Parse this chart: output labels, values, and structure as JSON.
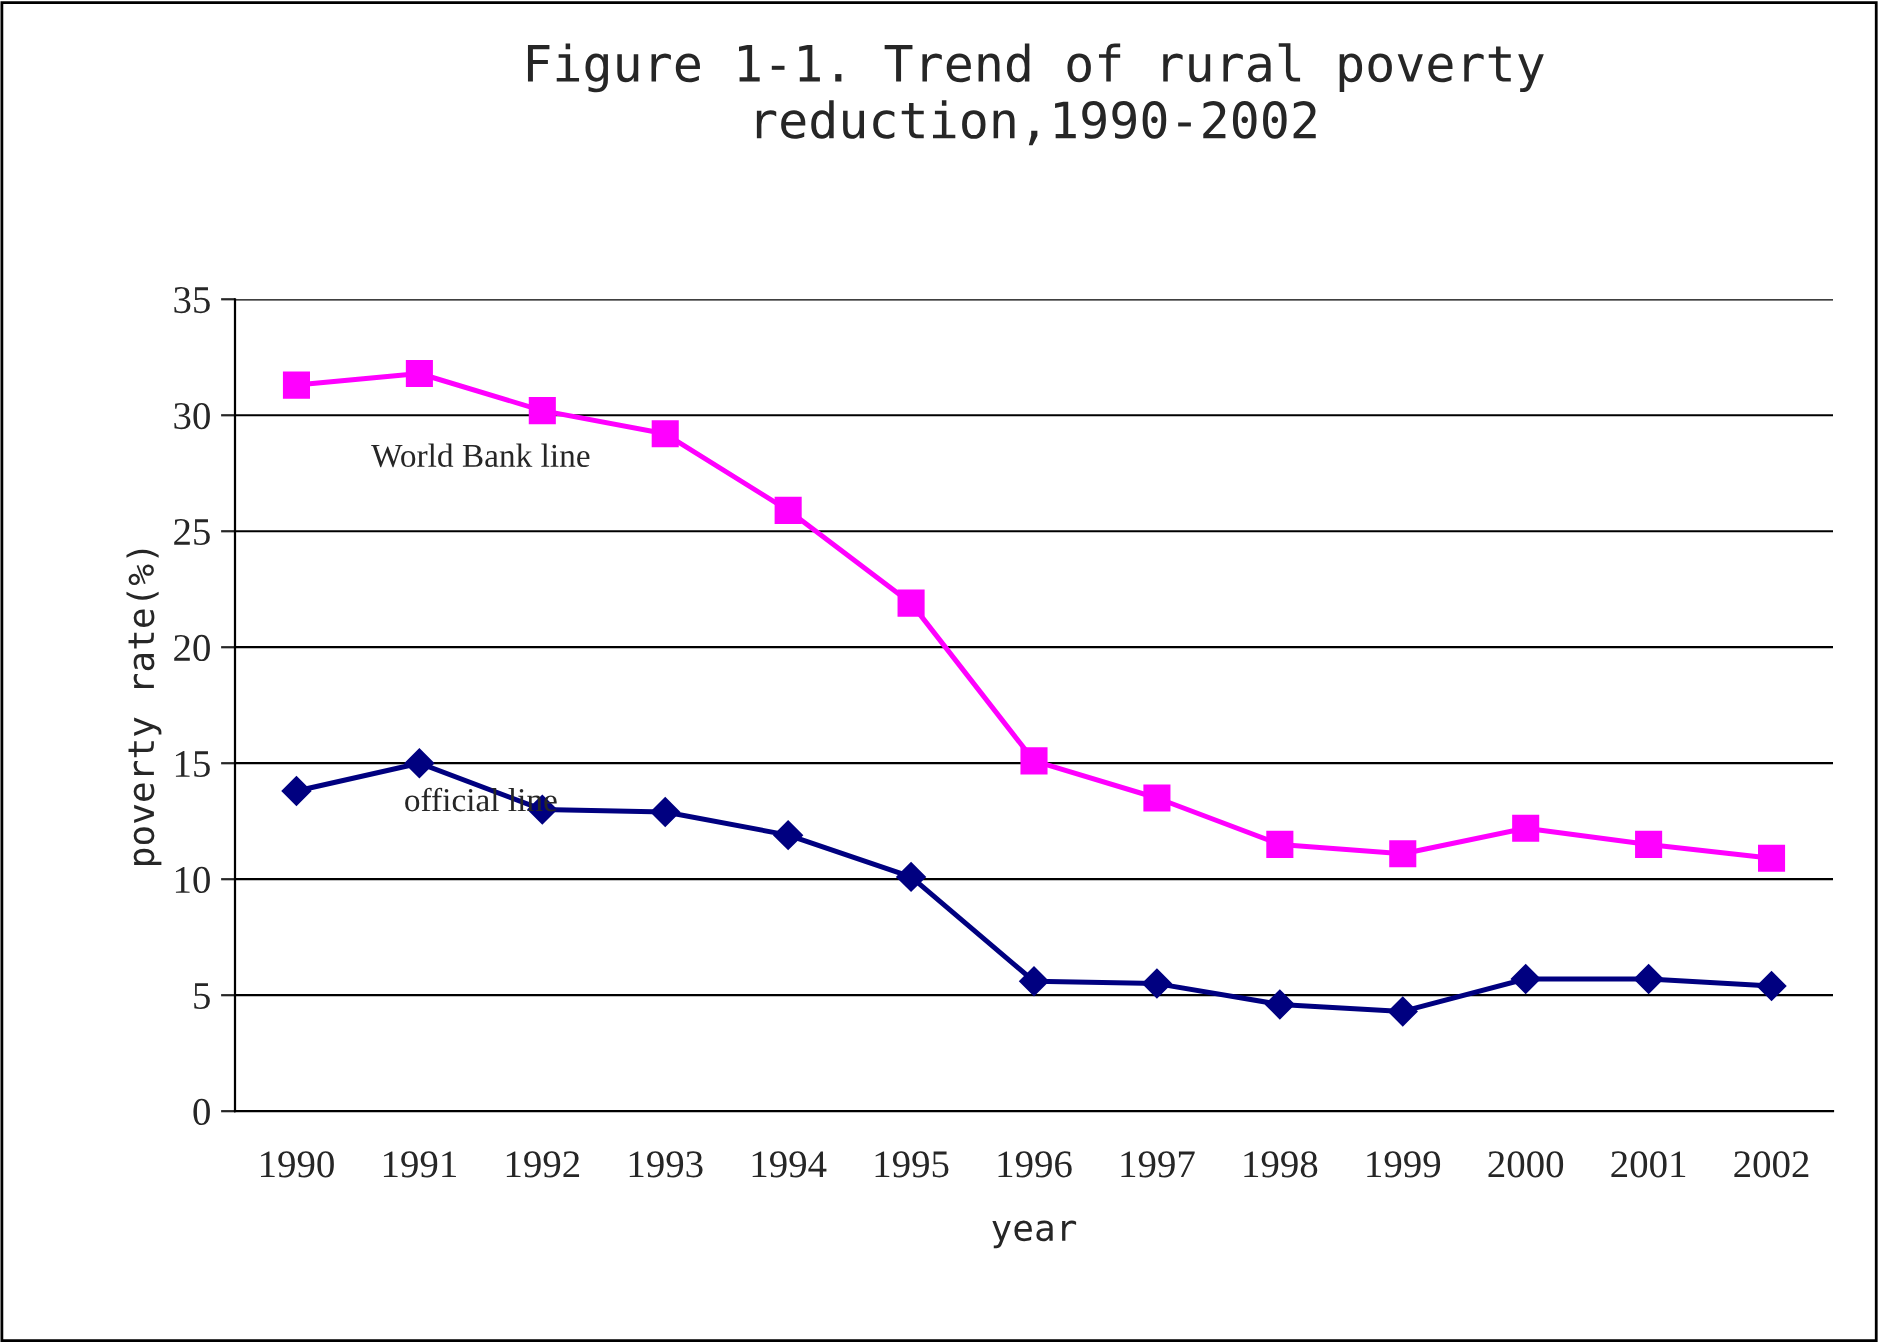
{
  "chart_data": {
    "type": "line",
    "title": "Figure 1-1. Trend of rural poverty\nreduction,1990-2002",
    "xlabel": "year",
    "ylabel": "poverty rate(%)",
    "categories": [
      "1990",
      "1991",
      "1992",
      "1993",
      "1994",
      "1995",
      "1996",
      "1997",
      "1998",
      "1999",
      "2000",
      "2001",
      "2002"
    ],
    "series": [
      {
        "name": "World Bank line",
        "color": "#ff00ff",
        "marker": "square",
        "values": [
          31.3,
          31.8,
          30.2,
          29.2,
          25.9,
          21.9,
          15.1,
          13.5,
          11.5,
          11.1,
          12.2,
          11.5,
          10.9
        ]
      },
      {
        "name": "official line",
        "color": "#000080",
        "marker": "diamond",
        "values": [
          13.8,
          15.0,
          13.0,
          12.9,
          11.9,
          10.1,
          5.6,
          5.5,
          4.6,
          4.3,
          5.7,
          5.7,
          5.4
        ]
      }
    ],
    "ylim": [
      0,
      35
    ],
    "yticks": [
      0,
      5,
      10,
      15,
      20,
      25,
      30,
      35
    ],
    "grid": "y",
    "legend": false,
    "line_style": "solid"
  }
}
